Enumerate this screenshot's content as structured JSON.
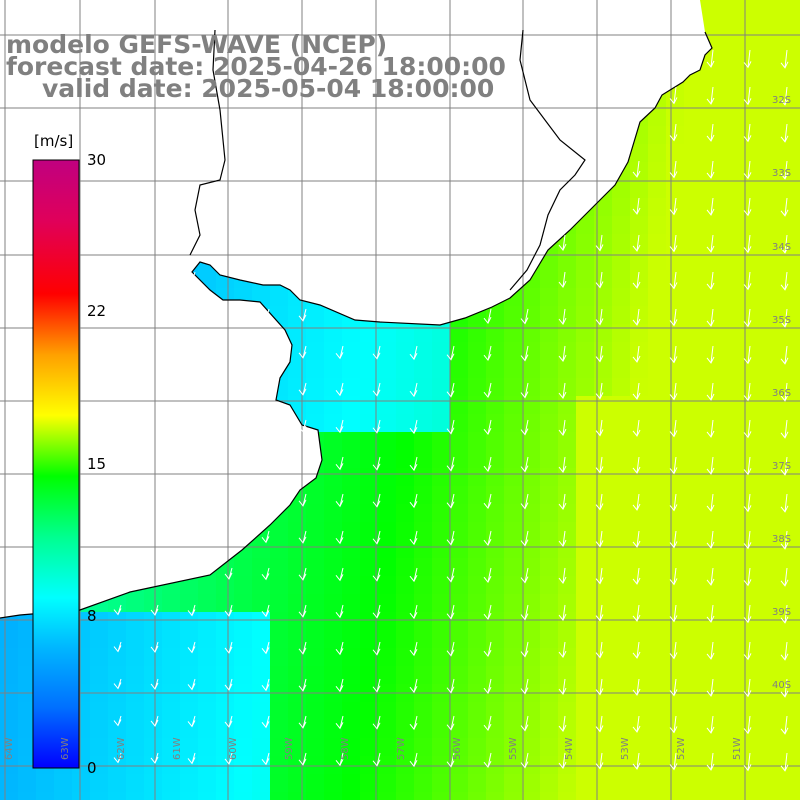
{
  "title": {
    "line1": "modelo GEFS-WAVE (NCEP)",
    "line2": "forecast date: 2025-04-26 18:00:00",
    "line3": "valid date: 2025-05-04 18:00:00"
  },
  "colorbar": {
    "unit": "[m/s]",
    "labels": [
      {
        "value": 30,
        "text": "30"
      },
      {
        "value": 22,
        "text": "22"
      },
      {
        "value": 15,
        "text": "15"
      },
      {
        "value": 8,
        "text": "8"
      },
      {
        "value": 0,
        "text": "0"
      }
    ],
    "min": 0,
    "max": 30
  },
  "map": {
    "lat_labels": [
      "32S",
      "33S",
      "34S",
      "35S",
      "36S",
      "37S",
      "38S",
      "39S",
      "40S"
    ],
    "lon_labels": [
      "64W",
      "63W",
      "62W",
      "61W",
      "60W",
      "59W",
      "58W",
      "57W",
      "56W",
      "55W",
      "54W",
      "53W",
      "52W",
      "51W"
    ],
    "colors": {
      "land": "#ffffff",
      "coast": "#000000",
      "grid": "#808080",
      "arrow": "#ffffff",
      "title": "#808080"
    }
  }
}
